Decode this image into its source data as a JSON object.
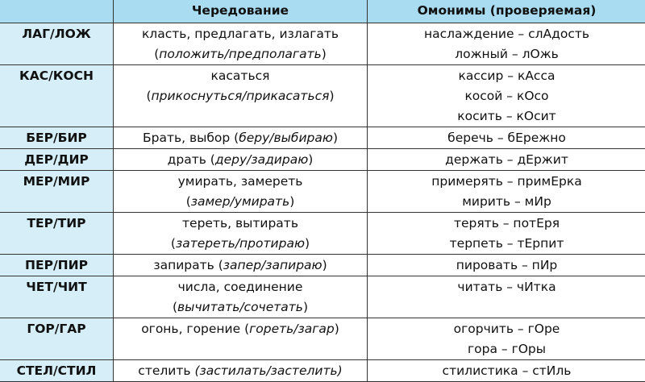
{
  "header": {
    "col1": "",
    "col2": "Чередование",
    "col3": "Омонимы (проверяемая)"
  },
  "colors": {
    "header_bg": "#a9dcf1",
    "root_col_bg": "#d5eef8"
  },
  "rows": [
    {
      "root": "ЛАГ/ЛОЖ",
      "alternation": [
        [
          {
            "t": "класть, предлагать, излагать",
            "i": false
          }
        ],
        [
          {
            "t": "(",
            "i": false
          },
          {
            "t": "положить/предполагать",
            "i": true
          },
          {
            "t": ")",
            "i": false
          }
        ]
      ],
      "homonyms": [
        "наслаждение – слАдость",
        "ложный – лОжь"
      ]
    },
    {
      "root": "КАС/КОСН",
      "alternation": [
        [
          {
            "t": "касаться",
            "i": false
          }
        ],
        [
          {
            "t": "(",
            "i": false
          },
          {
            "t": "прикоснуться/прикасаться",
            "i": true
          },
          {
            "t": ")",
            "i": false
          }
        ]
      ],
      "homonyms": [
        "кассир – кАсса",
        "косой – кОсо",
        "косить – кОсит"
      ]
    },
    {
      "root": "БЕР/БИР",
      "alternation": [
        [
          {
            "t": "Брать, выбор (",
            "i": false
          },
          {
            "t": "беру/выбираю",
            "i": true
          },
          {
            "t": ")",
            "i": false
          }
        ]
      ],
      "homonyms": [
        "беречь – бЕрежно"
      ]
    },
    {
      "root": "ДЕР/ДИР",
      "alternation": [
        [
          {
            "t": "драть (",
            "i": false
          },
          {
            "t": "деру/задираю",
            "i": true
          },
          {
            "t": ")",
            "i": false
          }
        ]
      ],
      "homonyms": [
        "держать – дЕржит"
      ]
    },
    {
      "root": "МЕР/МИР",
      "alternation": [
        [
          {
            "t": "умирать, замереть",
            "i": false
          }
        ],
        [
          {
            "t": "(",
            "i": false
          },
          {
            "t": "замер/умирать",
            "i": true
          },
          {
            "t": ")",
            "i": false
          }
        ]
      ],
      "homonyms": [
        "примерять – примЕрка",
        "мирить – мИр"
      ]
    },
    {
      "root": "ТЕР/ТИР",
      "alternation": [
        [
          {
            "t": "тереть, вытирать",
            "i": false
          }
        ],
        [
          {
            "t": "(",
            "i": false
          },
          {
            "t": "затереть/протираю",
            "i": true
          },
          {
            "t": ")",
            "i": false
          }
        ]
      ],
      "homonyms": [
        "терять – потЕря",
        "терпеть – тЕрпит"
      ]
    },
    {
      "root": "ПЕР/ПИР",
      "alternation": [
        [
          {
            "t": "запирать  (",
            "i": false
          },
          {
            "t": "запер/запираю",
            "i": true
          },
          {
            "t": ")",
            "i": false
          }
        ]
      ],
      "homonyms": [
        "пировать – пИр"
      ]
    },
    {
      "root": "ЧЕТ/ЧИТ",
      "alternation": [
        [
          {
            "t": "числа, соединение",
            "i": false
          }
        ],
        [
          {
            "t": "(",
            "i": false
          },
          {
            "t": "вычитать/сочетать",
            "i": true
          },
          {
            "t": ")",
            "i": false
          }
        ]
      ],
      "homonyms": [
        "читать – чИтка"
      ]
    },
    {
      "root": "ГОР/ГАР",
      "alternation": [
        [
          {
            "t": "огонь, горение (",
            "i": false
          },
          {
            "t": "гореть/загар",
            "i": true
          },
          {
            "t": ")",
            "i": false
          }
        ]
      ],
      "homonyms": [
        "огорчить – гОре",
        "гора – гОры"
      ]
    },
    {
      "root": "СТЕЛ/СТИЛ",
      "alternation": [
        [
          {
            "t": "стелить ",
            "i": false
          },
          {
            "t": "(застилать/застелить)",
            "i": true
          }
        ]
      ],
      "homonyms": [
        "стилистика – стИль"
      ]
    }
  ]
}
